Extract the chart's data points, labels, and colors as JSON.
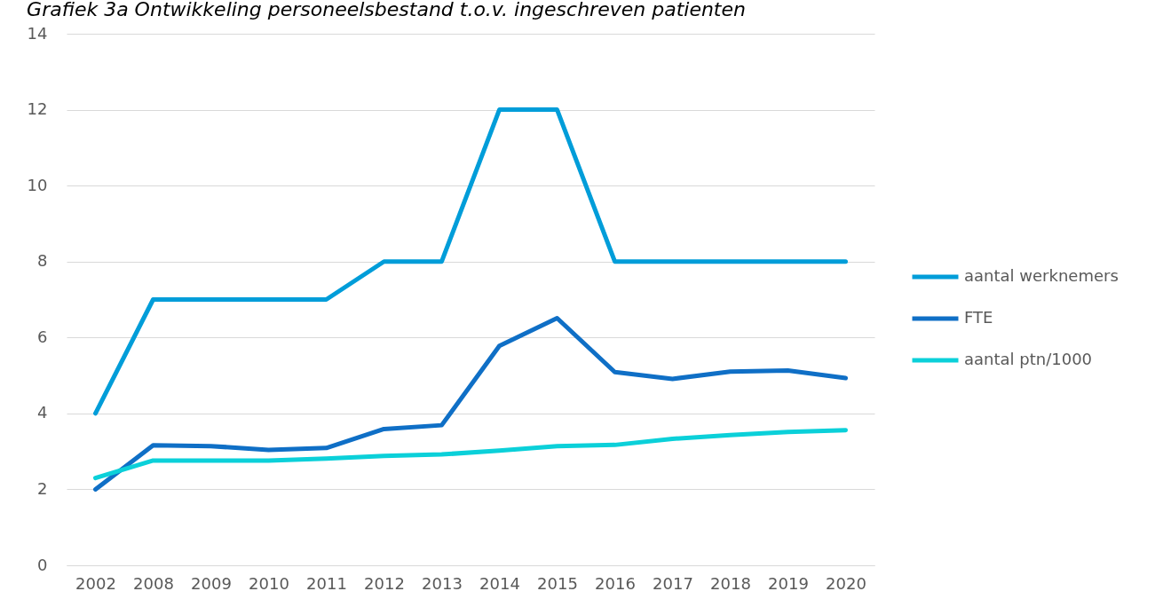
{
  "chart_data": {
    "type": "line",
    "title": "Grafiek 3a Ontwikkeling personeelsbestand t.o.v. ingeschreven patienten",
    "categories": [
      "2002",
      "2008",
      "2009",
      "2010",
      "2011",
      "2012",
      "2013",
      "2014",
      "2015",
      "2016",
      "2017",
      "2018",
      "2019",
      "2020"
    ],
    "series": [
      {
        "name": "aantal werknemers",
        "color": "#009dd9",
        "values": [
          4,
          7,
          7,
          7,
          7,
          8,
          8,
          12,
          12,
          8,
          8,
          8,
          8,
          8
        ]
      },
      {
        "name": "FTE",
        "color": "#0f6fc6",
        "values": [
          2.0,
          3.16,
          3.14,
          3.04,
          3.09,
          3.59,
          3.69,
          5.78,
          6.51,
          5.09,
          4.91,
          5.1,
          5.13,
          4.93
        ]
      },
      {
        "name": "aantal ptn/1000",
        "color": "#0bd0d9",
        "values": [
          2.3,
          2.76,
          2.76,
          2.76,
          2.81,
          2.88,
          2.92,
          3.02,
          3.14,
          3.17,
          3.33,
          3.43,
          3.51,
          3.56
        ]
      }
    ],
    "ylim": [
      0,
      14
    ],
    "yticks": [
      0,
      2,
      4,
      6,
      8,
      10,
      12,
      14
    ],
    "grid": "y",
    "legend": "right"
  }
}
